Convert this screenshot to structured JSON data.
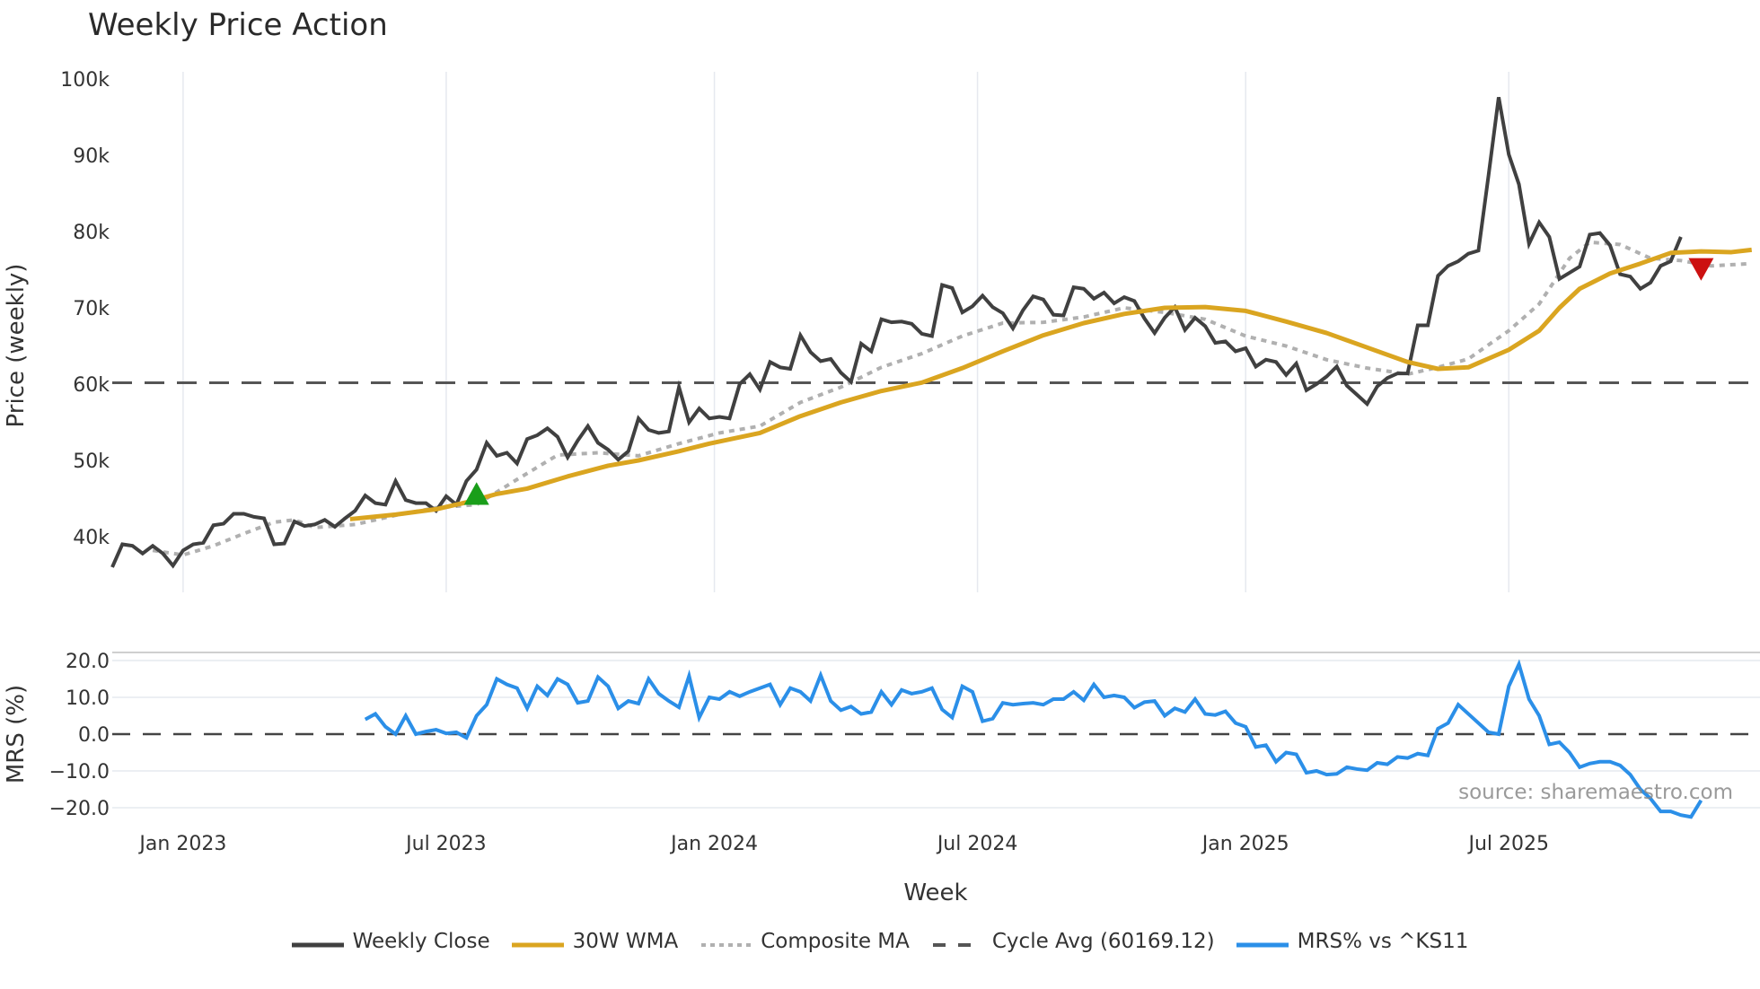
{
  "title": "Weekly Price Action",
  "source": "source: sharemaestro.com",
  "legend": [
    {
      "label": "Weekly Close",
      "color": "#404040",
      "style": "solid"
    },
    {
      "label": "30W WMA",
      "color": "#DAA520",
      "style": "solid"
    },
    {
      "label": "Composite MA",
      "color": "#b0b0b0",
      "style": "dotted"
    },
    {
      "label": "Cycle Avg (60169.12)",
      "color": "#555555",
      "style": "dashed"
    },
    {
      "label": "MRS% vs ^KS11",
      "color": "#2b8fe8",
      "style": "solid"
    }
  ],
  "chart_data": [
    {
      "type": "line",
      "title": "Weekly Price Action",
      "xlabel": "Week",
      "ylabel": "Price (weekly)",
      "ylim": [
        34000,
        101000
      ],
      "yticks": [
        40000,
        50000,
        60000,
        70000,
        80000,
        90000,
        100000
      ],
      "ytick_labels": [
        "40k",
        "50k",
        "60k",
        "70k",
        "80k",
        "90k",
        "100k"
      ],
      "xtick_labels": [
        "Jan 2023",
        "Jul 2023",
        "Jan 2024",
        "Jul 2024",
        "Jan 2025",
        "Jul 2025"
      ],
      "xtick_index": [
        7,
        33,
        59.5,
        85.5,
        112,
        138
      ],
      "grid": "vertical",
      "series": [
        {
          "name": "Weekly Close",
          "color": "#404040",
          "values_k": [
            36,
            39,
            38.8,
            37.8,
            38.8,
            37.8,
            36.2,
            38.2,
            39,
            39.2,
            41.5,
            41.7,
            43,
            43,
            42.6,
            42.4,
            39,
            39.1,
            42,
            41.4,
            41.6,
            42.2,
            41.3,
            42.4,
            43.4,
            45.4,
            44.4,
            44.2,
            47.3,
            44.8,
            44.4,
            44.4,
            43.4,
            45.3,
            44.2,
            47.3,
            48.8,
            52.3,
            50.6,
            51,
            49.6,
            52.8,
            53.3,
            54.2,
            53.1,
            50.4,
            52.6,
            54.5,
            52.3,
            51.4,
            50.1,
            51.2,
            55.5,
            54,
            53.6,
            53.8,
            59.6,
            55,
            56.8,
            55.5,
            55.7,
            55.5,
            60,
            61.3,
            59.3,
            62.9,
            62.2,
            62,
            66.4,
            64.2,
            63,
            63.3,
            61.5,
            60.3,
            65.3,
            64.3,
            68.5,
            68.1,
            68.2,
            67.9,
            66.6,
            66.3,
            73,
            72.6,
            69.4,
            70.2,
            71.6,
            70.1,
            69.3,
            67.3,
            69.7,
            71.5,
            71.1,
            69.1,
            69,
            72.7,
            72.5,
            71.2,
            72,
            70.6,
            71.4,
            70.9,
            68.6,
            66.7,
            68.7,
            70.1,
            67.1,
            68.7,
            67.6,
            65.4,
            65.6,
            64.3,
            64.7,
            62.3,
            63.2,
            62.9,
            61.2,
            62.7,
            59.2,
            60,
            61,
            62.3,
            59.8,
            58.6,
            57.4,
            59.7,
            60.8,
            61.4,
            61.4,
            67.7,
            67.7,
            74.2,
            75.5,
            76.1,
            77.1,
            77.5,
            87.4,
            97.6,
            90.1,
            86.2,
            78.4,
            81.2,
            79.3,
            73.8,
            74.6,
            75.4,
            79.6,
            79.8,
            78.2,
            74.4,
            74.1,
            72.5,
            73.3,
            75.5,
            76.1,
            79.3
          ]
        },
        {
          "name": "30W WMA",
          "color": "#DAA520",
          "points_k": [
            [
              23.5,
              42.3
            ],
            [
              28,
              42.9
            ],
            [
              32,
              43.6
            ],
            [
              35,
              44.5
            ],
            [
              38,
              45.6
            ],
            [
              41,
              46.3
            ],
            [
              45,
              47.9
            ],
            [
              49,
              49.3
            ],
            [
              52,
              50.0
            ],
            [
              56,
              51.2
            ],
            [
              59,
              52.2
            ],
            [
              64,
              53.6
            ],
            [
              68,
              55.8
            ],
            [
              72,
              57.6
            ],
            [
              76,
              59.1
            ],
            [
              80,
              60.2
            ],
            [
              84,
              62.1
            ],
            [
              88,
              64.3
            ],
            [
              92,
              66.4
            ],
            [
              96,
              68.0
            ],
            [
              100,
              69.2
            ],
            [
              104,
              70.0
            ],
            [
              108,
              70.1
            ],
            [
              112,
              69.6
            ],
            [
              116,
              68.2
            ],
            [
              120,
              66.7
            ],
            [
              124,
              64.8
            ],
            [
              128,
              62.9
            ],
            [
              131,
              62.0
            ],
            [
              134,
              62.2
            ],
            [
              138,
              64.5
            ],
            [
              141,
              67.0
            ],
            [
              143,
              70.0
            ],
            [
              145,
              72.5
            ],
            [
              148,
              74.5
            ],
            [
              151,
              75.8
            ],
            [
              154,
              77.2
            ],
            [
              157,
              77.4
            ],
            [
              160,
              77.3
            ],
            [
              162,
              77.6
            ]
          ]
        },
        {
          "name": "Composite MA",
          "color": "#b0b0b0",
          "points_k": [
            [
              4,
              38.2
            ],
            [
              7,
              37.6
            ],
            [
              10,
              38.8
            ],
            [
              13,
              40.4
            ],
            [
              16,
              41.9
            ],
            [
              18,
              42.2
            ],
            [
              20,
              41.2
            ],
            [
              24,
              41.6
            ],
            [
              28,
              42.8
            ],
            [
              32,
              43.8
            ],
            [
              36,
              44.2
            ],
            [
              40,
              47.5
            ],
            [
              44,
              50.7
            ],
            [
              48,
              51.0
            ],
            [
              52,
              50.6
            ],
            [
              56,
              52.2
            ],
            [
              60,
              53.6
            ],
            [
              64,
              54.5
            ],
            [
              68,
              57.6
            ],
            [
              72,
              59.6
            ],
            [
              76,
              62.2
            ],
            [
              80,
              64.0
            ],
            [
              84,
              66.3
            ],
            [
              88,
              68.0
            ],
            [
              92,
              68.1
            ],
            [
              96,
              68.8
            ],
            [
              100,
              70.0
            ],
            [
              104,
              69.4
            ],
            [
              108,
              68.5
            ],
            [
              112,
              66.3
            ],
            [
              116,
              65.0
            ],
            [
              120,
              63.2
            ],
            [
              124,
              62.1
            ],
            [
              128,
              61.3
            ],
            [
              131,
              62.2
            ],
            [
              134,
              63.3
            ],
            [
              138,
              67.0
            ],
            [
              141,
              70.5
            ],
            [
              144,
              76.5
            ],
            [
              146,
              78.6
            ],
            [
              149,
              78.3
            ],
            [
              152,
              76.5
            ],
            [
              155,
              76.2
            ],
            [
              158,
              75.5
            ],
            [
              162,
              75.8
            ]
          ]
        }
      ],
      "hlines": [
        {
          "name": "Cycle Avg",
          "value": 60169.12,
          "color": "#555555",
          "style": "dashed"
        }
      ],
      "markers": [
        {
          "type": "buy",
          "shape": "triangle-up",
          "color": "#1a9e1a",
          "index": 36,
          "value_k": 45.5
        },
        {
          "type": "sell",
          "shape": "triangle-down",
          "color": "#cc1111",
          "index": 157,
          "value_k": 75.2
        }
      ]
    },
    {
      "type": "line",
      "ylabel": "MRS (%)",
      "ylim": [
        -25,
        23
      ],
      "yticks": [
        -20,
        -10,
        0,
        10,
        20
      ],
      "ytick_labels": [
        "−20.0",
        "−10.0",
        "0.0",
        "10.0",
        "20.0"
      ],
      "grid": "horizontal",
      "hlines": [
        {
          "name": "Zero",
          "value": 0,
          "color": "#444444",
          "style": "dashed"
        }
      ],
      "series": [
        {
          "name": "MRS% vs ^KS11",
          "color": "#2b8fe8",
          "start_index": 25,
          "values": [
            4,
            5.5,
            2,
            0,
            5,
            0,
            0.7,
            1.2,
            0.2,
            0.5,
            -1,
            5,
            8,
            15,
            13.5,
            12.5,
            7,
            13,
            10.5,
            15,
            13.5,
            8.5,
            9,
            15.5,
            13,
            7,
            9,
            8.3,
            15,
            11,
            9,
            7.3,
            15.8,
            4.5,
            10,
            9.5,
            11.5,
            10.3,
            11.5,
            12.5,
            13.5,
            8,
            12.5,
            11.5,
            9,
            16,
            9,
            6.5,
            7.5,
            5.5,
            6,
            11.5,
            8,
            12,
            11,
            11.5,
            12.5,
            6.7,
            4.5,
            13,
            11.5,
            3.5,
            4.2,
            8.5,
            8,
            8.3,
            8.5,
            8,
            9.5,
            9.5,
            11.5,
            9.2,
            13.5,
            10,
            10.5,
            10,
            7.2,
            8.7,
            9,
            5,
            7,
            6,
            9.5,
            5.5,
            5.2,
            6.2,
            3,
            2,
            -3.5,
            -3,
            -7.5,
            -5,
            -5.5,
            -10.5,
            -10,
            -11,
            -10.8,
            -9,
            -9.5,
            -9.8,
            -7.8,
            -8.2,
            -6.2,
            -6.5,
            -5.3,
            -5.8,
            1.5,
            3,
            8,
            5.5,
            3,
            0.5,
            0,
            13,
            19,
            9.5,
            5,
            -2.8,
            -2.2,
            -5,
            -9,
            -8,
            -7.5,
            -7.5,
            -8.5,
            -11,
            -15,
            -17.5,
            -21,
            -21,
            -22,
            -22.5,
            -18
          ]
        }
      ]
    }
  ]
}
